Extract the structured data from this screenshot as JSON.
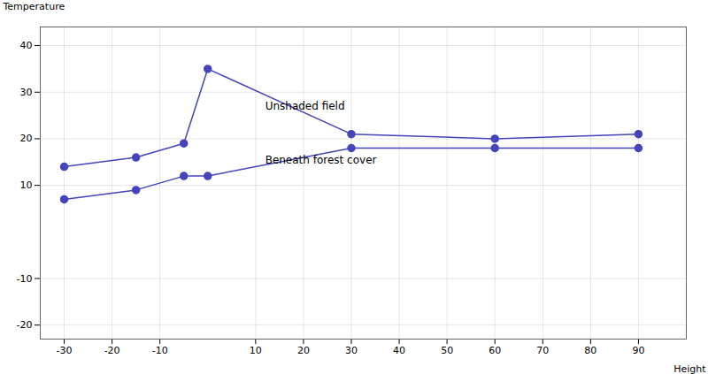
{
  "chart_data": {
    "type": "line",
    "xlabel": "Height",
    "ylabel": "Temperature",
    "x": [
      -30,
      -15,
      -5,
      0,
      30,
      60,
      90
    ],
    "series": [
      {
        "values": [
          14,
          16,
          19,
          35,
          21,
          20,
          21
        ],
        "color": "#4444bb",
        "marker": "circle",
        "line_style": "solid"
      },
      {
        "values": [
          7,
          9,
          12,
          12,
          18,
          18,
          18
        ],
        "color": "#4444bb",
        "marker": "circle",
        "line_style": "solid"
      }
    ],
    "annotations": [
      {
        "text": "Unshaded field",
        "x": 12,
        "y": 27
      },
      {
        "text": "Beneath forest cover",
        "x": 12,
        "y": 15.5
      }
    ],
    "xlim": [
      -35,
      100
    ],
    "ylim": [
      -23,
      44
    ],
    "xticks": [
      -30,
      -20,
      -10,
      10,
      20,
      30,
      40,
      50,
      60,
      70,
      80,
      90
    ],
    "yticks": [
      -20,
      -10,
      10,
      20,
      30,
      40
    ],
    "grid": true
  }
}
